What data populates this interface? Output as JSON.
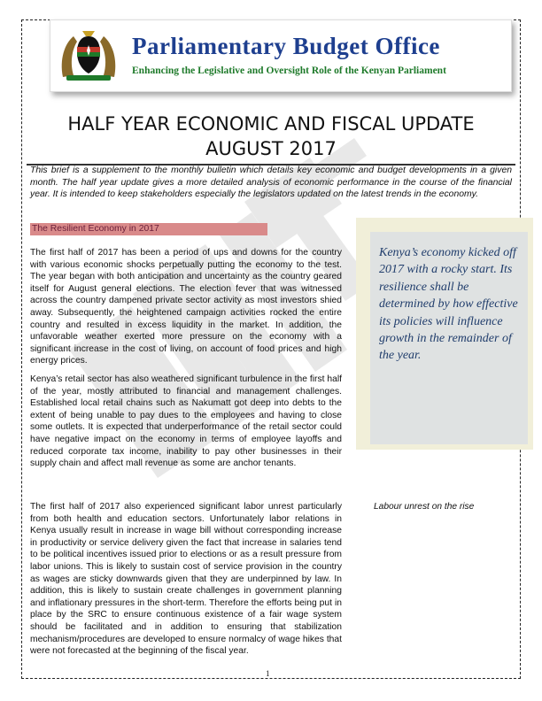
{
  "header": {
    "org_name": "Parliamentary Budget Office",
    "tagline": "Enhancing the Legislative and Oversight Role of the Kenyan Parliament",
    "logo_icon": "kenya-coat-of-arms",
    "colors": {
      "org_name": "#1e3f8f",
      "tagline": "#1e7a2a"
    }
  },
  "title": {
    "line1": "HALF YEAR ECONOMIC AND FISCAL UPDATE",
    "line2": "AUGUST 2017"
  },
  "intro": "This brief is a supplement to the monthly bulletin which details key economic and budget developments in a given month.  The half year update gives a more detailed analysis of economic performance in the course of the financial year.  It is intended to keep stakeholders especially the legislators updated on the latest trends in the economy.",
  "section": {
    "heading": "The Resilient Economy in 2017",
    "colors": {
      "bar": "#d98a8a",
      "text": "#6b1f3a"
    },
    "paragraphs": [
      "The first half of 2017 has been a period of ups and downs for the country with various economic shocks perpetually putting the economy to the test. The year began with both anticipation and uncertainty as the country geared itself for August general elections. The election fever that was witnessed across the country dampened private sector activity as most investors shied away. Subsequently, the heightened campaign activities rocked the entire country and resulted in excess liquidity in the market. In addition, the unfavorable weather exerted more pressure on the economy with a significant increase in the cost of living, on account of food prices and high energy prices.",
      "Kenya’s retail sector has also weathered significant turbulence in the first half of the year, mostly attributed to financial and management challenges. Established local retail chains such as Nakumatt got deep into debts to the extent of being unable to pay dues to the employees and having to close some outlets. It is expected that underperformance of the retail sector could have negative impact on the economy in terms of employee layoffs and reduced corporate tax income, inability to pay other businesses in their supply chain and affect mall revenue as some are anchor tenants.",
      "The first half of 2017 also experienced significant labor unrest particularly from both health and education sectors. Unfortunately labor relations in Kenya usually result in increase in wage bill without corresponding increase in productivity or service delivery given the fact that increase in salaries tend to be political incentives issued prior to elections or as a result pressure from labor unions. This is likely to sustain cost of service provision in the country as wages are sticky downwards given that they are underpinned by law. In addition, this is likely to sustain create challenges in government planning and inflationary pressures in the short-term. Therefore the efforts being put in place by the SRC to ensure continuous existence of a fair wage system should be facilitated and in addition to ensuring that stabilization mechanism/procedures are developed to ensure normalcy of wage hikes that were not forecasted at the beginning of the fiscal year."
    ]
  },
  "sidebar": {
    "quote": "Kenya’s economy kicked off 2017 with a rocky start. Its resilience shall be determined by how effective its policies will influence growth in the remainder of the year.",
    "colors": {
      "outer": "#f1efd9",
      "inner": "#dfe2e2",
      "text": "#1f3c6b"
    }
  },
  "caption": "Labour unrest on the rise",
  "watermark_text": "DRAFT",
  "page_number": "1"
}
